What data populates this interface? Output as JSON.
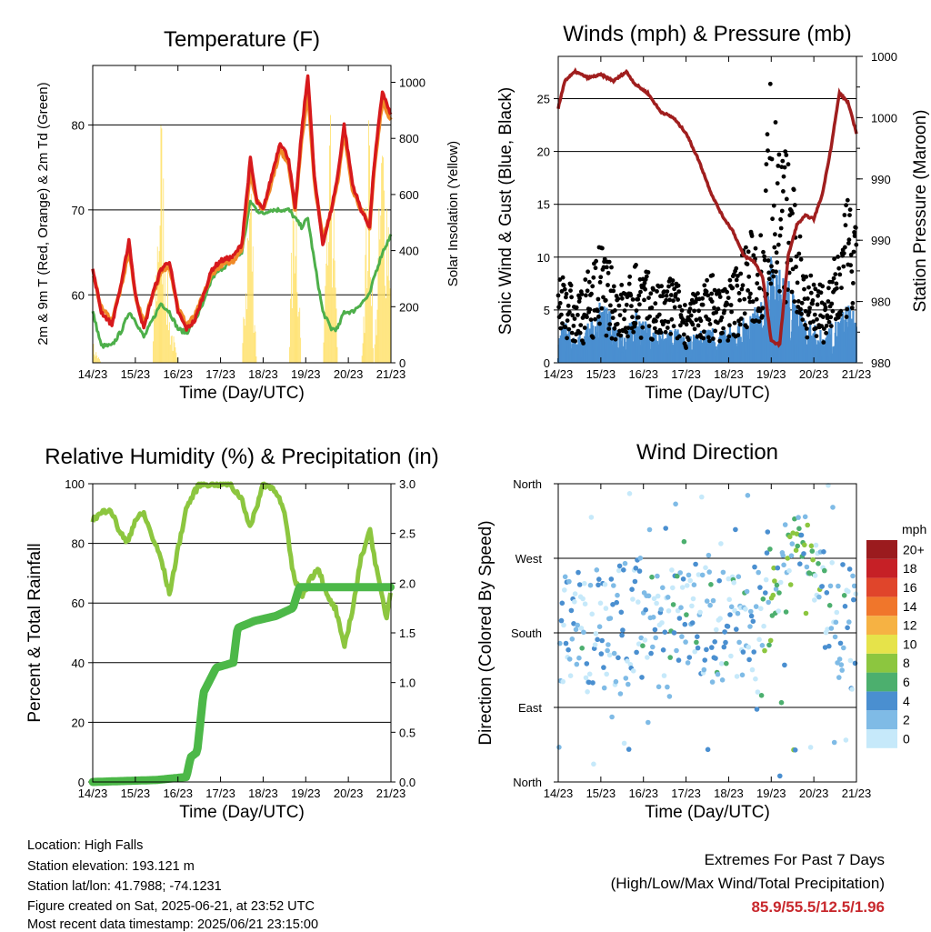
{
  "ticks": [
    "14/23",
    "15/23",
    "16/23",
    "17/23",
    "18/23",
    "19/23",
    "20/23",
    "21/23"
  ],
  "xlabel": "Time (Day/UTC)",
  "chart_data": [
    {
      "type": "line",
      "title": "Temperature (F)",
      "ylabel_left": "2m & 9m T (Red, Orange) & 2m Td (Green)",
      "ylabel_right": "Solar Insolation (Yellow)",
      "xlabel": "Time (Day/UTC)",
      "ylim_left": [
        52,
        87
      ],
      "yticks_left": [
        60,
        70,
        80
      ],
      "ylim_right": [
        0,
        1060
      ],
      "yticks_right": [
        0,
        200,
        400,
        600,
        800,
        1000
      ],
      "x_days": [
        0,
        0.2,
        0.45,
        0.7,
        0.85,
        1.0,
        1.2,
        1.4,
        1.6,
        1.8,
        2.0,
        2.2,
        2.4,
        2.6,
        2.8,
        3.0,
        3.3,
        3.5,
        3.7,
        3.85,
        4.0,
        4.15,
        4.4,
        4.6,
        4.75,
        4.9,
        5.05,
        5.2,
        5.4,
        5.6,
        5.75,
        5.9,
        6.1,
        6.3,
        6.5,
        6.6,
        6.8,
        7.0
      ],
      "series": [
        {
          "name": "2m T",
          "color": "#d7191c",
          "values": [
            63,
            58,
            56.5,
            62,
            66.5,
            60,
            56,
            60,
            63,
            64,
            58,
            56,
            57,
            60,
            63,
            64,
            64.5,
            66,
            76,
            71,
            70,
            73,
            78,
            76,
            70,
            79,
            86,
            74,
            66,
            70,
            74,
            80,
            73,
            70,
            68,
            75,
            84,
            81
          ]
        },
        {
          "name": "9m T",
          "color": "#f08a28",
          "values": [
            62.5,
            58.5,
            57,
            61.5,
            65.5,
            60,
            56.5,
            60,
            62.5,
            63.5,
            58.5,
            56.5,
            57.5,
            60,
            62.5,
            63.5,
            64,
            65.5,
            74.5,
            71,
            70,
            72.5,
            77,
            75.5,
            70,
            78,
            84,
            73.5,
            66.5,
            70,
            73.5,
            79,
            72.5,
            70,
            68,
            74.5,
            83,
            80.5
          ]
        },
        {
          "name": "2m Td",
          "color": "#4daf4a",
          "values": [
            58,
            54,
            54,
            56,
            58,
            57,
            55,
            57,
            59,
            58,
            56,
            55.5,
            57,
            59,
            62,
            63,
            64,
            65,
            71,
            70,
            69.5,
            70,
            70,
            70,
            69,
            68,
            69,
            64,
            58,
            56,
            56,
            58,
            58,
            59,
            60,
            62,
            65,
            67
          ]
        },
        {
          "name": "Solar Insolation",
          "color": "#ffe066",
          "values": [
            80,
            0,
            0,
            0,
            0,
            0,
            0,
            0,
            1000,
            200,
            0,
            0,
            0,
            0,
            0,
            0,
            0,
            0,
            850,
            0,
            0,
            0,
            0,
            0,
            1000,
            0,
            0,
            0,
            0,
            1000,
            0,
            0,
            0,
            0,
            1000,
            0,
            950,
            600
          ]
        }
      ]
    },
    {
      "type": "scatter",
      "title": "Winds (mph) & Pressure (mb)",
      "ylabel_left": "Sonic Wind & Gust (Blue, Black)",
      "ylabel_right": "Station Pressure (Maroon)",
      "xlabel": "Time (Day/UTC)",
      "ylim_left": [
        0,
        29
      ],
      "yticks_left": [
        0,
        5,
        10,
        15,
        20,
        25
      ],
      "yticks_right_labels": [
        "980",
        "980",
        "990",
        "990",
        "1000",
        "1000"
      ],
      "pressure_levels": [
        0,
        0.1,
        0.2,
        0.3,
        0.4,
        0.5,
        0.6,
        0.7,
        0.8,
        0.9,
        1.0
      ],
      "x_days": [
        0,
        0.15,
        0.4,
        0.7,
        1.0,
        1.3,
        1.6,
        1.8,
        2.1,
        2.4,
        2.7,
        3.0,
        3.3,
        3.6,
        3.85,
        4.1,
        4.35,
        4.6,
        4.8,
        5.0,
        5.2,
        5.4,
        5.6,
        5.8,
        6.0,
        6.2,
        6.4,
        6.6,
        6.8,
        7.0
      ],
      "series": [
        {
          "name": "Station Pressure",
          "color": "#a01e1e",
          "values": [
            0.83,
            0.92,
            0.95,
            0.93,
            0.94,
            0.92,
            0.95,
            0.91,
            0.88,
            0.82,
            0.8,
            0.75,
            0.66,
            0.55,
            0.48,
            0.43,
            0.35,
            0.33,
            0.28,
            0.07,
            0.06,
            0.35,
            0.45,
            0.48,
            0.47,
            0.55,
            0.7,
            0.88,
            0.85,
            0.75
          ]
        },
        {
          "name": "Gust",
          "color": "#000000",
          "values": [
            5,
            7,
            4,
            6,
            8,
            6,
            5,
            7,
            6,
            5,
            6,
            4,
            5,
            6,
            5,
            6,
            8,
            9,
            10,
            20,
            15,
            14,
            10,
            7,
            6,
            5,
            6,
            8,
            11,
            9
          ]
        },
        {
          "name": "Sonic Wind",
          "color": "#4a8fd0",
          "values": [
            1.5,
            3,
            1.5,
            2.5,
            4,
            3,
            2,
            3.5,
            2.5,
            2,
            2.5,
            1.5,
            2,
            2.5,
            2,
            2.5,
            3,
            3.5,
            4,
            7,
            6,
            5.5,
            4,
            3,
            2.5,
            2,
            2.5,
            3,
            4,
            3
          ]
        }
      ]
    },
    {
      "type": "line",
      "title": "Relative Humidity (%) & Precipitation (in)",
      "ylabel_left": "Percent & Total Rainfall",
      "xlabel": "Time (Day/UTC)",
      "ylim_left": [
        0,
        100
      ],
      "yticks_left": [
        0,
        20,
        40,
        60,
        80,
        100
      ],
      "ylim_right": [
        0,
        3.0
      ],
      "yticks_right": [
        0.0,
        0.5,
        1.0,
        1.5,
        2.0,
        2.5,
        3.0
      ],
      "series": [
        {
          "name": "Relative Humidity",
          "color": "#8cc63f",
          "x_days": [
            0,
            0.2,
            0.4,
            0.6,
            0.8,
            1.0,
            1.2,
            1.4,
            1.6,
            1.8,
            2.0,
            2.2,
            2.5,
            2.8,
            3.0,
            3.2,
            3.5,
            3.7,
            4.0,
            4.3,
            4.5,
            4.7,
            4.9,
            5.1,
            5.3,
            5.5,
            5.7,
            5.9,
            6.1,
            6.3,
            6.5,
            6.7,
            6.9,
            7.0
          ],
          "values": [
            88,
            90,
            92,
            85,
            80,
            88,
            90,
            82,
            75,
            63,
            78,
            92,
            100,
            100,
            100,
            100,
            95,
            85,
            100,
            98,
            90,
            70,
            62,
            68,
            72,
            62,
            58,
            45,
            58,
            75,
            85,
            68,
            55,
            65
          ]
        },
        {
          "name": "Total Rainfall",
          "color": "#4cb848",
          "x_days": [
            0,
            1.5,
            2.2,
            2.3,
            2.45,
            2.6,
            2.9,
            3.3,
            3.4,
            3.8,
            4.3,
            4.7,
            4.85,
            7.0
          ],
          "values": [
            0,
            0.02,
            0.05,
            0.25,
            0.3,
            0.9,
            1.15,
            1.2,
            1.55,
            1.62,
            1.67,
            1.75,
            1.96,
            1.96
          ]
        }
      ]
    },
    {
      "type": "scatter",
      "title": "Wind Direction",
      "ylabel_left": "Direction (Colored By Speed)",
      "xlabel": "Time (Day/UTC)",
      "yticks_left": [
        "North",
        "East",
        "South",
        "West",
        "North"
      ],
      "colorbar_title": "mph",
      "colorbar_labels": [
        "0",
        "2",
        "4",
        "6",
        "8",
        "10",
        "12",
        "14",
        "16",
        "18",
        "20+"
      ],
      "colorbar_colors": [
        "#c6e9fa",
        "#7fbbe6",
        "#4a8fd0",
        "#4caf6e",
        "#8cc63f",
        "#e6e34a",
        "#f6b243",
        "#f0762b",
        "#e0452b",
        "#c62026",
        "#9b1b1e"
      ],
      "x_days": [
        0.3,
        0.8,
        1.5,
        2.0,
        2.5,
        3.0,
        3.5,
        4.0,
        4.5,
        4.8,
        5.3,
        5.7,
        6.1,
        6.6,
        6.9
      ],
      "values": [
        180,
        185,
        190,
        200,
        175,
        220,
        190,
        185,
        190,
        175,
        270,
        290,
        250,
        200,
        185
      ]
    }
  ],
  "info": [
    "Location: High Falls",
    "Station elevation: 193.121 m",
    "Station lat/lon: 41.7988; -74.1231",
    "Figure created on Sat, 2025-06-21, at 23:52 UTC",
    "Most recent data timestamp: 2025/06/21 23:15:00"
  ],
  "extremes": {
    "title": "Extremes For Past 7 Days",
    "subtitle": "(High/Low/Max Wind/Total Precipitation)",
    "values": "85.9/55.5/12.5/1.96"
  }
}
